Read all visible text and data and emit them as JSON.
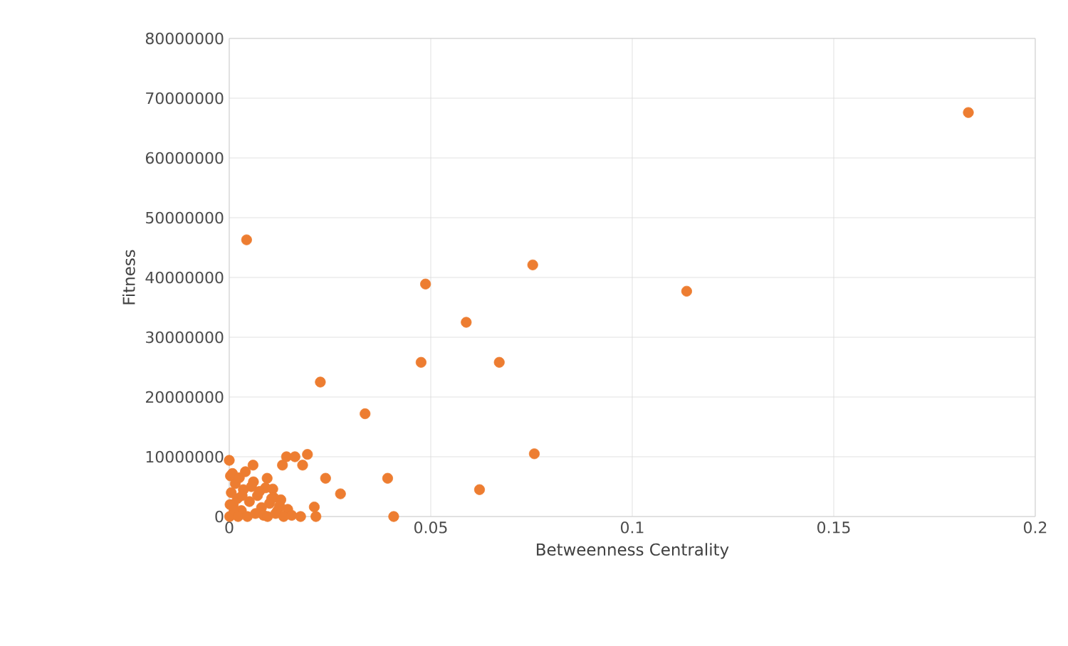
{
  "chart_data": {
    "type": "scatter",
    "xlabel": "Betweenness Centrality",
    "ylabel": "Fitness",
    "xlim": [
      0,
      0.2
    ],
    "xticks": [
      0,
      0.05,
      0.1,
      0.15,
      0.2
    ],
    "ylim": [
      0,
      80000000
    ],
    "yticks": [
      0,
      10000000,
      20000000,
      30000000,
      40000000,
      50000000,
      60000000,
      70000000,
      80000000
    ],
    "grid": true,
    "series": [
      {
        "color": "#ed7d31",
        "x": [
          0.1834,
          0.0043,
          0.0753,
          0.0487,
          0.1135,
          0.0588,
          0.0476,
          0.067,
          0.0226,
          0.0337,
          0.0757,
          0,
          0.0059,
          0.0132,
          0.0142,
          0.0163,
          0.0194,
          0.0182,
          0.0094,
          0.0239,
          0.0393,
          0.0276,
          0.0621,
          0.0408,
          0.0211,
          0.0215,
          0.0177,
          0.0108,
          0.0128,
          0.0145,
          0.0001,
          0.0003,
          0.0005,
          0.0008,
          0.001,
          0.0015,
          0.002,
          0.0025,
          0.003,
          0.0035,
          0.004,
          0.005,
          0.006,
          0.007,
          0.008,
          0.009,
          0.01,
          0.011,
          0.012,
          0.0002,
          0.0012,
          0.0022,
          0.0032,
          0.0045,
          0.0055,
          0.0065,
          0.0075,
          0.0085,
          0.0095,
          0.0105,
          0.0115,
          0.0125,
          0.0135,
          0.0155
        ],
        "values": [
          67600000,
          46300000,
          42100000,
          38900000,
          37700000,
          32500000,
          25800000,
          25800000,
          22500000,
          17200000,
          10500000,
          9400000,
          8600000,
          8600000,
          10000000,
          10000000,
          10400000,
          8600000,
          6400000,
          6400000,
          6400000,
          3800000,
          4500000,
          0,
          1600000,
          0,
          0,
          4600000,
          2800000,
          1200000,
          0,
          6800000,
          4000000,
          7200000,
          2000000,
          5500000,
          3000000,
          6500000,
          1000000,
          4500000,
          7500000,
          2500000,
          5800000,
          3500000,
          1500000,
          4800000,
          2200000,
          3200000,
          1000000,
          2000000,
          1000000,
          0,
          3500000,
          0,
          5000000,
          500000,
          4200000,
          200000,
          0,
          3000000,
          500000,
          1800000,
          0,
          200000
        ]
      }
    ]
  }
}
